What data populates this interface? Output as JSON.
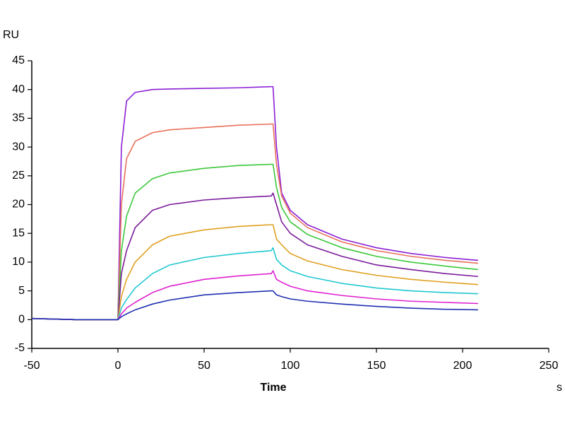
{
  "chart_data": {
    "type": "line",
    "ylabel": "RU",
    "xlabel": "Time",
    "x_unit": "s",
    "x": [
      -50,
      -25,
      -1,
      0,
      2,
      5,
      10,
      20,
      30,
      50,
      70,
      89,
      90,
      92,
      95,
      100,
      110,
      130,
      150,
      170,
      190,
      209
    ],
    "series": [
      {
        "color": "#8b1fd6",
        "values": [
          0.2,
          0,
          0,
          0,
          30,
          38,
          39.5,
          40,
          40.1,
          40.2,
          40.3,
          40.5,
          40.5,
          30,
          22,
          19,
          16.5,
          14,
          12.5,
          11.5,
          10.8,
          10.3
        ]
      },
      {
        "color": "#e8705a",
        "values": [
          0.2,
          0,
          0,
          0,
          20,
          28,
          31,
          32.5,
          33,
          33.4,
          33.8,
          34,
          34,
          27,
          21.5,
          18.5,
          16,
          13.5,
          12,
          11,
          10.3,
          9.8
        ]
      },
      {
        "color": "#3cc83c",
        "values": [
          0.2,
          0,
          0,
          0,
          12,
          18,
          22,
          24.5,
          25.5,
          26.3,
          26.8,
          27,
          27,
          23,
          19.5,
          17,
          14.8,
          12.5,
          11,
          10,
          9.3,
          8.7
        ]
      },
      {
        "color": "#7a1a9a",
        "values": [
          0.2,
          0,
          0,
          0,
          8,
          12,
          16,
          19,
          20,
          20.8,
          21.2,
          21.5,
          22,
          20,
          17,
          15,
          13,
          11,
          9.5,
          8.7,
          8,
          7.5
        ]
      },
      {
        "color": "#e0a020",
        "values": [
          0.2,
          0,
          0,
          0,
          4,
          7,
          10,
          13,
          14.5,
          15.6,
          16.2,
          16.5,
          16.5,
          14,
          13,
          11.5,
          10.2,
          8.7,
          7.7,
          7,
          6.5,
          6.1
        ]
      },
      {
        "color": "#20c8d0",
        "values": [
          0.2,
          0,
          0,
          0,
          2,
          3.5,
          5.5,
          8,
          9.5,
          10.8,
          11.5,
          12,
          12.5,
          10.5,
          9.5,
          8.5,
          7.5,
          6.3,
          5.5,
          5,
          4.7,
          4.5
        ]
      },
      {
        "color": "#e020d0",
        "values": [
          0.2,
          0,
          0,
          0,
          1,
          2,
          3,
          4.7,
          5.8,
          7,
          7.6,
          8,
          8.5,
          7,
          6.5,
          5.8,
          5,
          4.2,
          3.6,
          3.2,
          3,
          2.8
        ]
      },
      {
        "color": "#2030b0",
        "values": [
          0.2,
          0,
          0,
          0,
          0.5,
          1,
          1.7,
          2.7,
          3.4,
          4.3,
          4.7,
          5,
          5,
          4.3,
          4,
          3.6,
          3.2,
          2.7,
          2.3,
          2,
          1.8,
          1.7
        ]
      }
    ],
    "xlim": [
      -50,
      250
    ],
    "xticks": [
      -50,
      0,
      50,
      100,
      150,
      200,
      250
    ],
    "ylim": [
      -5,
      45
    ],
    "yticks": [
      -5,
      0,
      5,
      10,
      15,
      20,
      25,
      30,
      35,
      40,
      45
    ],
    "grid": false
  }
}
